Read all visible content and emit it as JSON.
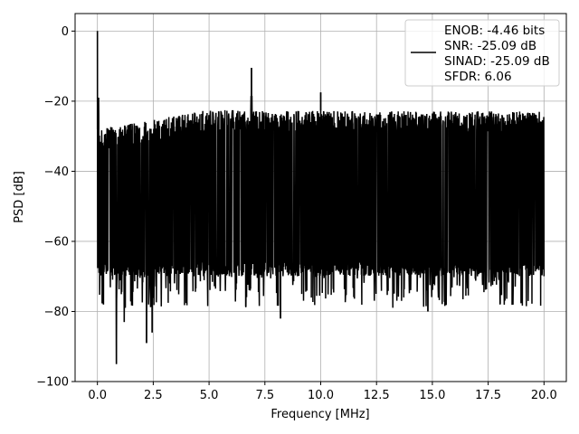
{
  "chart_data": {
    "type": "line",
    "title": "",
    "xlabel": "Frequency [MHz]",
    "ylabel": "PSD [dB]",
    "xlim": [
      -1.0,
      21.0
    ],
    "ylim": [
      -100,
      5
    ],
    "xticks": [
      0.0,
      2.5,
      5.0,
      7.5,
      10.0,
      12.5,
      15.0,
      17.5,
      20.0
    ],
    "xtick_labels": [
      "0.0",
      "2.5",
      "5.0",
      "7.5",
      "10.0",
      "12.5",
      "15.0",
      "17.5",
      "20.0"
    ],
    "yticks": [
      0,
      -20,
      -40,
      -60,
      -80,
      -100
    ],
    "ytick_labels": [
      "0",
      "−20",
      "−40",
      "−60",
      "−80",
      "−100"
    ],
    "grid": true,
    "legend_position": "top-right",
    "legend_lines": [
      "ENOB: -4.46 bits",
      "SNR: -25.09 dB",
      "SINAD: -25.09 dB",
      "SFDR: 6.06"
    ],
    "line_color": "#000000",
    "frequency_range_mhz": [
      0.0,
      20.0
    ],
    "noise_floor_top_db": {
      "at_0_mhz": -28,
      "at_5_mhz": -22.5,
      "at_20_mhz": -23
    },
    "noise_floor_bottom_db": -68,
    "peaks": [
      {
        "x": 0.0,
        "y": 0
      },
      {
        "x": 0.05,
        "y": -19
      },
      {
        "x": 6.9,
        "y": -10.5
      },
      {
        "x": 10.0,
        "y": -17.5
      }
    ],
    "dips": [
      {
        "x": 0.27,
        "y": -78
      },
      {
        "x": 0.85,
        "y": -95
      },
      {
        "x": 1.2,
        "y": -83
      },
      {
        "x": 2.2,
        "y": -89
      },
      {
        "x": 2.45,
        "y": -86
      },
      {
        "x": 8.2,
        "y": -82
      },
      {
        "x": 14.8,
        "y": -80
      }
    ]
  }
}
